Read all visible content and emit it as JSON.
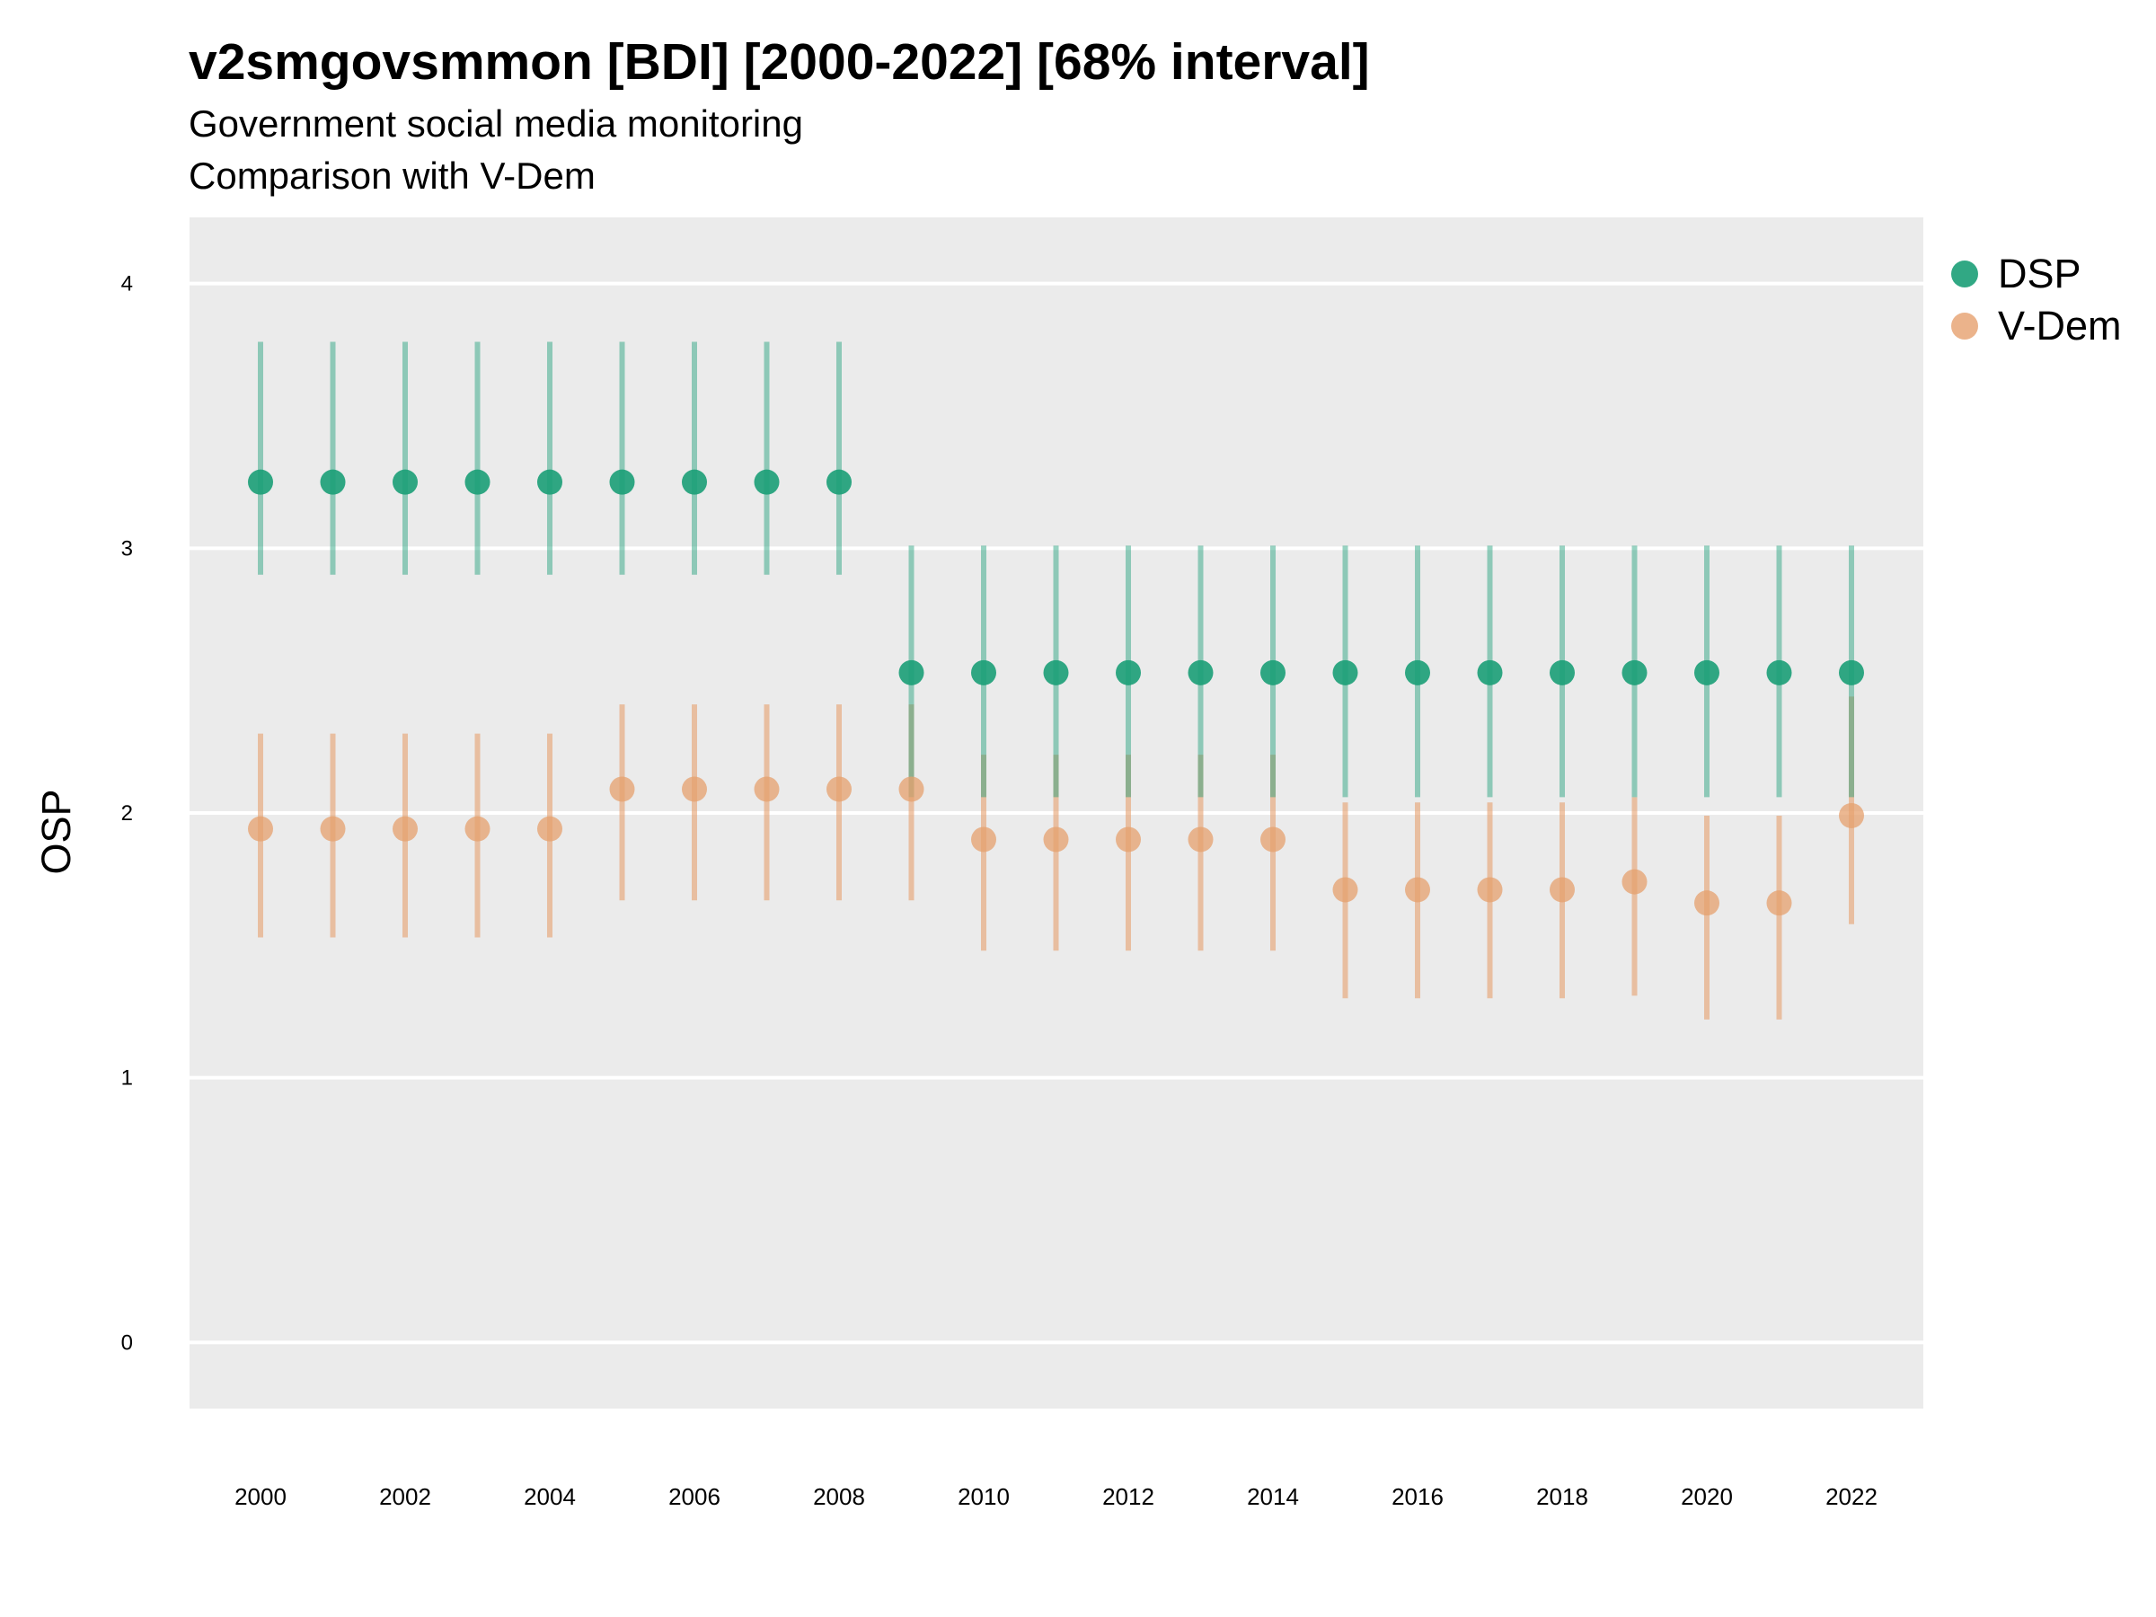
{
  "title": "v2smgovsmmon [BDI] [2000-2022] [68% interval]",
  "subtitle": "Government social media monitoring",
  "caption": "Comparison with V-Dem",
  "chart_data": {
    "type": "scatter",
    "error_bars": true,
    "ylabel": "OSP",
    "xlabel": "",
    "ylim": [
      -0.25,
      4.25
    ],
    "y_ticks": [
      0,
      1,
      2,
      3,
      4
    ],
    "x_ticks": [
      2000,
      2002,
      2004,
      2006,
      2008,
      2010,
      2012,
      2014,
      2016,
      2018,
      2020,
      2022
    ],
    "x": [
      2000,
      2001,
      2002,
      2003,
      2004,
      2005,
      2006,
      2007,
      2008,
      2009,
      2010,
      2011,
      2012,
      2013,
      2014,
      2015,
      2016,
      2017,
      2018,
      2019,
      2020,
      2021,
      2022
    ],
    "grid": "horizontal",
    "legend_position": "right",
    "series": [
      {
        "name": "DSP",
        "color": "#1b9e77",
        "values": [
          3.25,
          3.25,
          3.25,
          3.25,
          3.25,
          3.25,
          3.25,
          3.25,
          3.25,
          2.53,
          2.53,
          2.53,
          2.53,
          2.53,
          2.53,
          2.53,
          2.53,
          2.53,
          2.53,
          2.53,
          2.53,
          2.53,
          2.53
        ],
        "lower": [
          2.9,
          2.9,
          2.9,
          2.9,
          2.9,
          2.9,
          2.9,
          2.9,
          2.9,
          2.06,
          2.06,
          2.06,
          2.06,
          2.06,
          2.06,
          2.06,
          2.06,
          2.06,
          2.06,
          2.06,
          2.06,
          2.06,
          2.06
        ],
        "upper": [
          3.78,
          3.78,
          3.78,
          3.78,
          3.78,
          3.78,
          3.78,
          3.78,
          3.78,
          3.01,
          3.01,
          3.01,
          3.01,
          3.01,
          3.01,
          3.01,
          3.01,
          3.01,
          3.01,
          3.01,
          3.01,
          3.01,
          3.01
        ]
      },
      {
        "name": "V-Dem",
        "color": "#e6a06e",
        "values": [
          1.94,
          1.94,
          1.94,
          1.94,
          1.94,
          2.09,
          2.09,
          2.09,
          2.09,
          2.09,
          1.9,
          1.9,
          1.9,
          1.9,
          1.9,
          1.71,
          1.71,
          1.71,
          1.71,
          1.74,
          1.66,
          1.66,
          1.99
        ],
        "lower": [
          1.53,
          1.53,
          1.53,
          1.53,
          1.53,
          1.67,
          1.67,
          1.67,
          1.67,
          1.67,
          1.48,
          1.48,
          1.48,
          1.48,
          1.48,
          1.3,
          1.3,
          1.3,
          1.3,
          1.31,
          1.22,
          1.22,
          1.58
        ],
        "upper": [
          2.3,
          2.3,
          2.3,
          2.3,
          2.3,
          2.41,
          2.41,
          2.41,
          2.41,
          2.41,
          2.22,
          2.22,
          2.22,
          2.22,
          2.22,
          2.04,
          2.04,
          2.04,
          2.04,
          2.06,
          1.99,
          1.99,
          2.44
        ]
      }
    ]
  }
}
